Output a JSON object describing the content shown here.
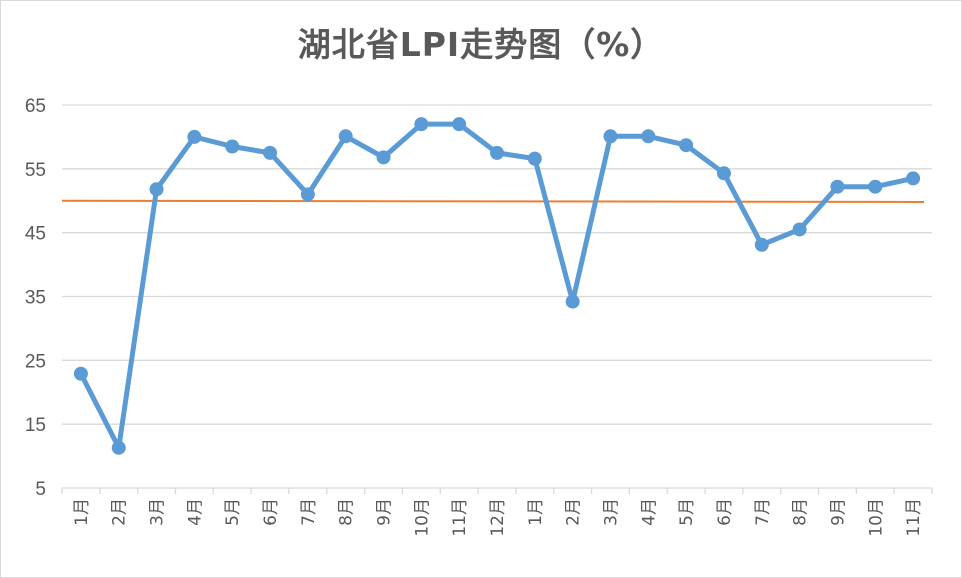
{
  "chart_data": {
    "type": "line",
    "title": "湖北省LPI走势图（%）",
    "xlabel": "",
    "ylabel": "",
    "categories": [
      "1月",
      "2月",
      "3月",
      "4月",
      "5月",
      "6月",
      "7月",
      "8月",
      "9月",
      "10月",
      "11月",
      "12月",
      "1月",
      "2月",
      "3月",
      "4月",
      "5月",
      "6月",
      "7月",
      "8月",
      "9月",
      "10月",
      "11月"
    ],
    "series": [
      {
        "values": [
          22.9,
          11.3,
          51.8,
          60.0,
          58.5,
          57.5,
          51.0,
          60.1,
          56.8,
          62.0,
          62.0,
          57.5,
          56.6,
          34.2,
          60.1,
          60.1,
          58.7,
          54.3,
          43.1,
          45.5,
          52.2,
          52.2,
          53.5
        ],
        "color": "#5b9bd5"
      }
    ],
    "reference_line": {
      "value": 50,
      "color": "#ed7d31"
    },
    "ylim": [
      5,
      65
    ],
    "yticks": [
      5,
      15,
      25,
      35,
      45,
      55,
      65
    ],
    "grid": true,
    "legend": "none"
  }
}
